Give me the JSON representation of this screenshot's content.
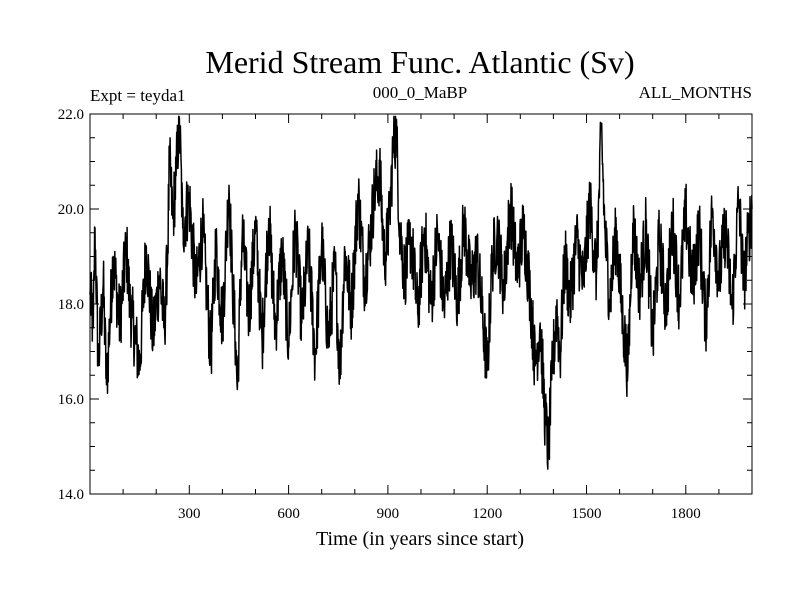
{
  "chart_data": {
    "type": "line",
    "title": "Merid Stream Func. Atlantic (Sv)",
    "subtitle_left": "Expt = teyda1",
    "subtitle_center": "000_0_MaBP",
    "subtitle_right": "ALL_MONTHS",
    "xlabel": "Time (in years since start)",
    "ylabel": "",
    "xlim": [
      0,
      2000
    ],
    "ylim": [
      14.0,
      22.0
    ],
    "xticks": [
      300,
      600,
      900,
      1200,
      1500,
      1800
    ],
    "xtick_labels": [
      "300",
      "600",
      "900",
      "1200",
      "1500",
      "1800"
    ],
    "yticks": [
      14.0,
      16.0,
      18.0,
      20.0,
      22.0
    ],
    "ytick_labels": [
      "14.0",
      "16.0",
      "18.0",
      "20.0",
      "22.0"
    ],
    "series": [
      {
        "name": "Merid Stream Func. Atlantic",
        "color": "#000000",
        "anchors": [
          [
            0,
            18.2
          ],
          [
            10,
            17.5
          ],
          [
            15,
            19.6
          ],
          [
            25,
            16.7
          ],
          [
            40,
            18.4
          ],
          [
            50,
            16.3
          ],
          [
            70,
            19.0
          ],
          [
            90,
            17.6
          ],
          [
            110,
            19.2
          ],
          [
            120,
            18.0
          ],
          [
            150,
            16.7
          ],
          [
            170,
            19.2
          ],
          [
            190,
            17.3
          ],
          [
            210,
            18.6
          ],
          [
            225,
            17.5
          ],
          [
            235,
            19.2
          ],
          [
            240,
            21.0
          ],
          [
            250,
            19.8
          ],
          [
            260,
            20.7
          ],
          [
            270,
            21.9
          ],
          [
            280,
            19.6
          ],
          [
            300,
            20.2
          ],
          [
            320,
            18.3
          ],
          [
            340,
            19.6
          ],
          [
            355,
            18.0
          ],
          [
            365,
            16.9
          ],
          [
            380,
            19.2
          ],
          [
            400,
            17.6
          ],
          [
            420,
            20.5
          ],
          [
            430,
            18.5
          ],
          [
            440,
            17.2
          ],
          [
            445,
            16.2
          ],
          [
            460,
            19.5
          ],
          [
            480,
            17.8
          ],
          [
            500,
            19.6
          ],
          [
            520,
            17.2
          ],
          [
            540,
            19.8
          ],
          [
            560,
            17.5
          ],
          [
            580,
            19.1
          ],
          [
            600,
            17.2
          ],
          [
            620,
            19.6
          ],
          [
            640,
            17.6
          ],
          [
            660,
            19.2
          ],
          [
            680,
            16.9
          ],
          [
            700,
            19.3
          ],
          [
            720,
            17.2
          ],
          [
            740,
            18.8
          ],
          [
            755,
            16.6
          ],
          [
            770,
            19.1
          ],
          [
            790,
            17.9
          ],
          [
            810,
            20.3
          ],
          [
            830,
            18.5
          ],
          [
            845,
            19.3
          ],
          [
            860,
            20.4
          ],
          [
            875,
            20.8
          ],
          [
            890,
            18.9
          ],
          [
            905,
            19.8
          ],
          [
            915,
            21.2
          ],
          [
            925,
            21.7
          ],
          [
            935,
            19.7
          ],
          [
            950,
            18.6
          ],
          [
            970,
            19.4
          ],
          [
            990,
            17.8
          ],
          [
            1010,
            19.6
          ],
          [
            1030,
            18.0
          ],
          [
            1050,
            19.5
          ],
          [
            1070,
            17.9
          ],
          [
            1090,
            19.3
          ],
          [
            1110,
            18.1
          ],
          [
            1130,
            19.7
          ],
          [
            1150,
            18.4
          ],
          [
            1170,
            19.0
          ],
          [
            1185,
            17.8
          ],
          [
            1200,
            16.6
          ],
          [
            1215,
            18.9
          ],
          [
            1230,
            19.5
          ],
          [
            1250,
            18.3
          ],
          [
            1270,
            20.1
          ],
          [
            1290,
            18.7
          ],
          [
            1310,
            19.6
          ],
          [
            1330,
            18.2
          ],
          [
            1345,
            16.7
          ],
          [
            1360,
            17.6
          ],
          [
            1375,
            15.6
          ],
          [
            1385,
            14.9
          ],
          [
            1395,
            16.4
          ],
          [
            1410,
            17.9
          ],
          [
            1420,
            16.9
          ],
          [
            1435,
            19.0
          ],
          [
            1450,
            18.0
          ],
          [
            1470,
            19.4
          ],
          [
            1490,
            18.4
          ],
          [
            1510,
            20.1
          ],
          [
            1530,
            18.6
          ],
          [
            1545,
            21.7
          ],
          [
            1555,
            19.6
          ],
          [
            1570,
            18.1
          ],
          [
            1590,
            19.5
          ],
          [
            1610,
            17.6
          ],
          [
            1625,
            16.6
          ],
          [
            1640,
            19.7
          ],
          [
            1660,
            18.3
          ],
          [
            1680,
            19.6
          ],
          [
            1700,
            17.2
          ],
          [
            1720,
            19.4
          ],
          [
            1740,
            17.9
          ],
          [
            1760,
            19.7
          ],
          [
            1780,
            18.1
          ],
          [
            1800,
            19.9
          ],
          [
            1820,
            18.4
          ],
          [
            1840,
            19.6
          ],
          [
            1860,
            17.6
          ],
          [
            1880,
            20.0
          ],
          [
            1900,
            18.5
          ],
          [
            1920,
            19.6
          ],
          [
            1940,
            17.9
          ],
          [
            1960,
            20.2
          ],
          [
            1975,
            18.4
          ],
          [
            1990,
            19.5
          ],
          [
            2000,
            20.0
          ]
        ]
      }
    ]
  }
}
